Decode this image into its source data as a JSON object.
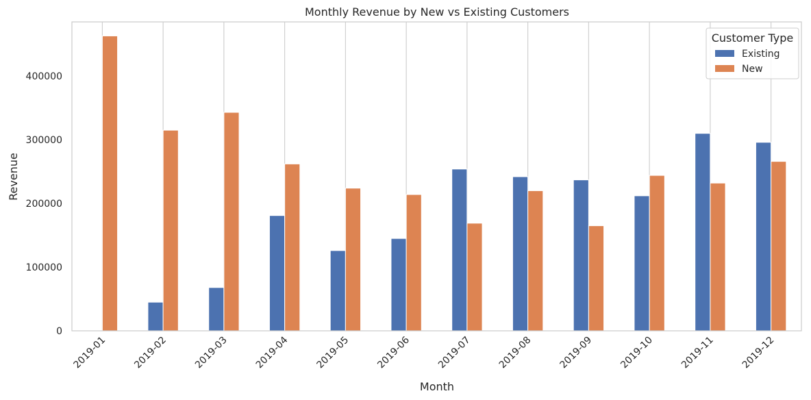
{
  "chart_data": {
    "type": "bar",
    "title": "Monthly Revenue by New vs Existing Customers",
    "xlabel": "Month",
    "ylabel": "Revenue",
    "categories": [
      "2019-01",
      "2019-02",
      "2019-03",
      "2019-04",
      "2019-05",
      "2019-06",
      "2019-07",
      "2019-08",
      "2019-09",
      "2019-10",
      "2019-11",
      "2019-12"
    ],
    "series": [
      {
        "name": "Existing",
        "color": "#4c72b0",
        "values": [
          0,
          45000,
          68000,
          181000,
          126000,
          145000,
          254000,
          242000,
          237000,
          212000,
          310000,
          296000
        ]
      },
      {
        "name": "New",
        "color": "#dd8452",
        "values": [
          463000,
          315000,
          343000,
          262000,
          224000,
          214000,
          169000,
          220000,
          165000,
          244000,
          232000,
          266000
        ]
      }
    ],
    "ylim": [
      0,
      485000
    ],
    "yticks": [
      0,
      100000,
      200000,
      300000,
      400000
    ],
    "ytick_labels": [
      "0",
      "100000",
      "200000",
      "300000",
      "400000"
    ],
    "grid": "x",
    "legend": {
      "title": "Customer Type",
      "placement": "top-right"
    }
  }
}
